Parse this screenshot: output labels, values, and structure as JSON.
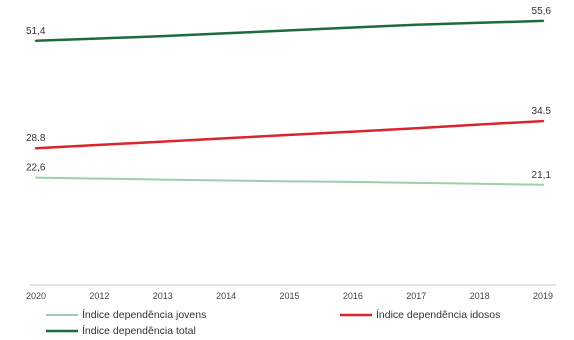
{
  "chart_data": {
    "type": "line",
    "title": "",
    "xlabel": "",
    "ylabel": "",
    "x": [
      "2020",
      "2012",
      "2013",
      "2014",
      "2015",
      "2016",
      "2017",
      "2018",
      "2019"
    ],
    "ylim": [
      0,
      60
    ],
    "grid": false,
    "legend_position": "bottom",
    "series": [
      {
        "name": "Índice dependência jovens",
        "color": "#9ccfae",
        "values": [
          22.6,
          22.4,
          22.2,
          22.0,
          21.8,
          21.7,
          21.5,
          21.3,
          21.1
        ],
        "labels": {
          "first": "22,6",
          "last": "21,1"
        }
      },
      {
        "name": "Índice dependência idosos",
        "color": "#d9262e",
        "values": [
          28.8,
          29.5,
          30.2,
          30.9,
          31.6,
          32.3,
          33.0,
          33.8,
          34.5
        ],
        "labels": {
          "first": "28.8",
          "last": "34.5"
        }
      },
      {
        "name": "Índice dependência total",
        "color": "#1e6b3f",
        "values": [
          51.4,
          51.9,
          52.4,
          53.0,
          53.6,
          54.2,
          54.8,
          55.2,
          55.6
        ],
        "labels": {
          "first": "51,4",
          "last": "55,6"
        }
      }
    ]
  }
}
